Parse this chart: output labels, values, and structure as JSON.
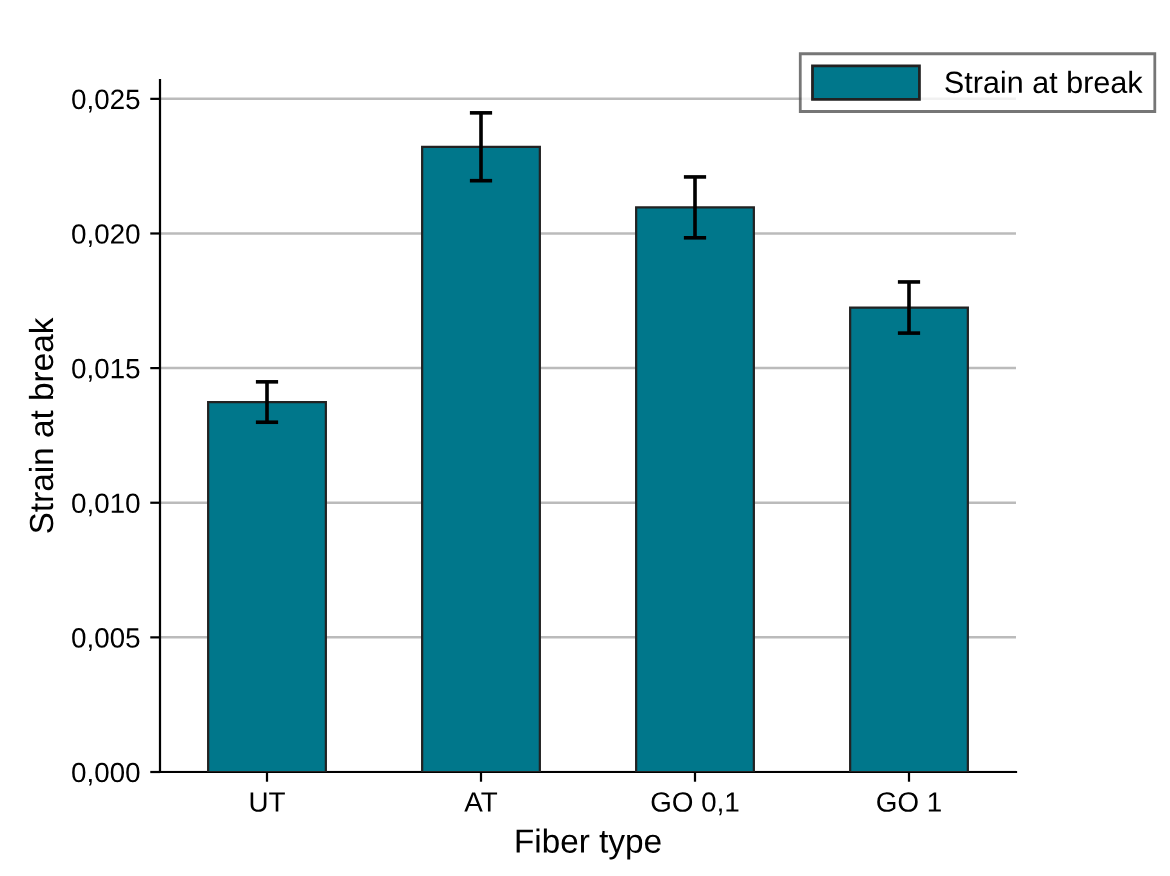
{
  "chart_data": {
    "type": "bar",
    "xlabel": "Fiber type",
    "ylabel": "Strain at break",
    "categories": [
      "UT",
      "AT",
      "GO 0,1",
      "GO 1"
    ],
    "series": [
      {
        "name": "Strain at break",
        "color": "#00778b",
        "values": [
          0.01374,
          0.02322,
          0.02097,
          0.01725
        ],
        "errors": [
          0.00075,
          0.00126,
          0.00113,
          0.00095
        ]
      }
    ],
    "ylim": [
      0,
      0.0257
    ],
    "yticks": [
      {
        "value": 0,
        "label": "0,000"
      },
      {
        "value": 0.005,
        "label": "0,005"
      },
      {
        "value": 0.01,
        "label": "0,010"
      },
      {
        "value": 0.015,
        "label": "0,015"
      },
      {
        "value": 0.02,
        "label": "0,020"
      },
      {
        "value": 0.025,
        "label": "0,025"
      }
    ],
    "grid": "y",
    "legend": "top right"
  }
}
